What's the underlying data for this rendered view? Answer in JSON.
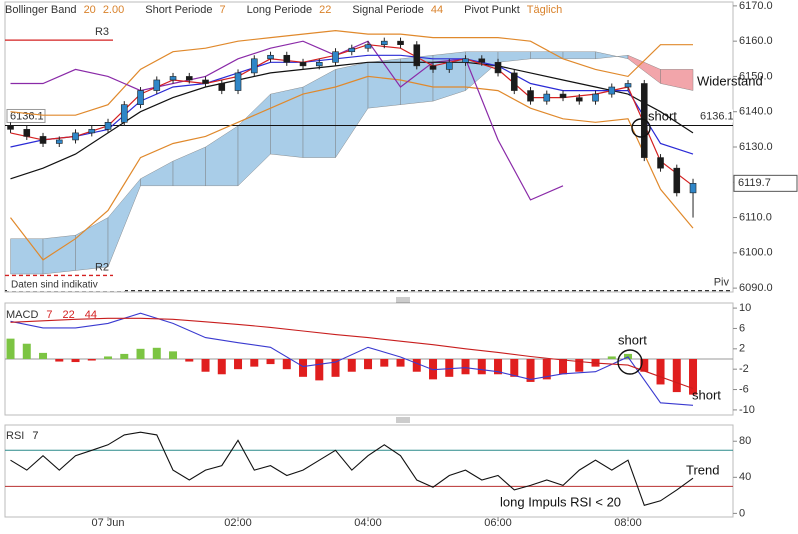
{
  "chart_data": [
    {
      "type": "candlestick",
      "indicators": [
        {
          "name": "Bollinger Band",
          "params": [
            "20",
            "2.00"
          ]
        },
        {
          "name": "Short Periode",
          "params": [
            "7"
          ]
        },
        {
          "name": "Long Periode",
          "params": [
            "22"
          ]
        },
        {
          "name": "Signal Periode",
          "params": [
            "44"
          ]
        },
        {
          "name": "Pivot Punkt",
          "params": [
            "Täglich"
          ]
        }
      ],
      "param_color": "#d9822b",
      "note": "Daten sind indikativ",
      "x": [
        -1.5,
        -1.25,
        -1,
        -0.75,
        -0.5,
        -0.25,
        0,
        0.25,
        0.5,
        0.75,
        1,
        1.25,
        1.5,
        1.75,
        2,
        2.25,
        2.5,
        2.75,
        3,
        3.25,
        3.5,
        3.75,
        4,
        4.25,
        4.5,
        4.75,
        5,
        5.25,
        5.5,
        5.75,
        6,
        6.25,
        6.5,
        6.75,
        7,
        7.25,
        7.5,
        7.75,
        8,
        8.25,
        8.5,
        8.75,
        9
      ],
      "open": [
        6136,
        6135,
        6133,
        6131,
        6132,
        6134,
        6135,
        6137,
        6142,
        6146,
        6149,
        6150,
        6149,
        6148,
        6146,
        6151,
        6155,
        6156,
        6154,
        6153,
        6154,
        6157,
        6158,
        6159,
        6160,
        6159,
        6153,
        6152,
        6154,
        6155,
        6154,
        6151,
        6146,
        6143,
        6145,
        6144,
        6143,
        6145,
        6147,
        6148,
        6127,
        6124,
        6117
      ],
      "high": [
        6137,
        6136,
        6134,
        6133,
        6135,
        6136,
        6138,
        6143,
        6147,
        6150,
        6151,
        6151,
        6150,
        6149,
        6152,
        6156,
        6157,
        6157,
        6155,
        6155,
        6158,
        6159,
        6160,
        6161,
        6161,
        6160,
        6154,
        6155,
        6156,
        6156,
        6155,
        6152,
        6147,
        6146,
        6146,
        6145,
        6146,
        6148,
        6149,
        6149,
        6128,
        6125,
        6121
      ],
      "low": [
        6134,
        6132,
        6130,
        6130,
        6131,
        6133,
        6134,
        6136,
        6141,
        6145,
        6148,
        6148,
        6147,
        6145,
        6145,
        6150,
        6154,
        6153,
        6152,
        6152,
        6153,
        6156,
        6157,
        6158,
        6158,
        6152,
        6151,
        6151,
        6153,
        6153,
        6150,
        6145,
        6142,
        6142,
        6143,
        6142,
        6142,
        6144,
        6146,
        6126,
        6123,
        6116,
        6110
      ],
      "close": [
        6135,
        6133,
        6131,
        6132,
        6134,
        6135,
        6137,
        6142,
        6146,
        6149,
        6150,
        6149,
        6148,
        6146,
        6151,
        6155,
        6156,
        6154,
        6153,
        6154,
        6157,
        6158,
        6159,
        6160,
        6159,
        6153,
        6152,
        6154,
        6155,
        6154,
        6151,
        6146,
        6143,
        6145,
        6144,
        6143,
        6145,
        6147,
        6148,
        6127,
        6124,
        6117,
        6119.7
      ],
      "up_color": "#2f86c8",
      "down_color": "#1a1a1a",
      "line_x": [
        -1.5,
        -1,
        -0.5,
        0,
        0.5,
        1,
        1.5,
        2,
        2.5,
        3,
        3.5,
        4,
        4.5,
        5,
        5.5,
        6,
        6.5,
        7,
        7.5,
        8,
        8.5,
        9
      ],
      "cloud": {
        "color_up": "#a9cde8",
        "color_down": "#f2a5aa",
        "span_a": [
          6104,
          6104,
          6105,
          6110,
          6121,
          6126,
          6130,
          6136,
          6145,
          6147,
          6152,
          6154,
          6155,
          6156,
          6157,
          6157,
          6157,
          6157,
          6157,
          6155,
          6148,
          6146
        ],
        "span_b": [
          6094,
          6094,
          6095,
          6096,
          6119,
          6119,
          6119,
          6119,
          6128,
          6127,
          6127,
          6141,
          6142,
          6143,
          6146,
          6154,
          6155,
          6155,
          6155,
          6156,
          6152,
          6152
        ]
      },
      "lines": [
        {
          "color": "#e0892c",
          "values": [
            6140,
            6139,
            6139,
            6142,
            6152,
            6157,
            6158,
            6160,
            6161,
            6162,
            6163,
            6162,
            6162,
            6161,
            6161,
            6161,
            6160,
            6155,
            6152,
            6150,
            6159,
            6159
          ]
        },
        {
          "color": "#e0892c",
          "values": [
            6110,
            6098,
            6104,
            6112,
            6127,
            6131,
            6133,
            6137,
            6141,
            6145,
            6147,
            6150,
            6149,
            6147,
            6147,
            6146,
            6141,
            6138,
            6137,
            6138,
            6118,
            6107
          ]
        },
        {
          "color": "#8a2aa8",
          "values": [
            6148,
            6148,
            6152,
            6150,
            6146,
            6148,
            6150,
            6155,
            6158,
            6160,
            6156,
            6160,
            6147,
            6154,
            6155,
            6132,
            6115,
            6119,
            null,
            null,
            null,
            null
          ]
        },
        {
          "color": "#111111",
          "values": [
            6121,
            6124,
            6128,
            6134,
            6140,
            6144,
            6147,
            6149,
            6151,
            6152,
            6153,
            6154,
            6154,
            6154,
            6154,
            6153,
            6151,
            6149,
            6147,
            6145,
            6140,
            6134
          ]
        },
        {
          "color": "#2b2bd6",
          "values": [
            6130,
            6132,
            6133,
            6135,
            6143,
            6147,
            6148,
            6151,
            6154,
            6154,
            6155,
            6156,
            6156,
            6155,
            6155,
            6153,
            6148,
            6146,
            6146,
            6146,
            6131,
            6128
          ]
        },
        {
          "color": "#d42020",
          "values": [
            6134,
            6132,
            6133,
            6136,
            6145,
            6149,
            6148,
            6150,
            6155,
            6154,
            6156,
            6159,
            6158,
            6153,
            6155,
            6152,
            6144,
            6144,
            6145,
            6147,
            6126,
            6119
          ]
        }
      ],
      "levels": [
        {
          "label": "R3",
          "value": 6160.3,
          "color": "#d42020",
          "dashed": false
        },
        {
          "label": "R2",
          "value": 6093.6,
          "color": "#d42020",
          "dashed": true
        },
        {
          "label": "Piv",
          "value": 6089.3,
          "color": "#333333",
          "dashed": true
        }
      ],
      "marker_line": {
        "value": 6136.1,
        "color": "#111111"
      },
      "annotations": [
        "short",
        "Widerstand"
      ],
      "ylim": [
        6088.9,
        6171.1
      ],
      "yticks": [
        {
          "value": 6170,
          "label": "6170.0"
        },
        {
          "value": 6160,
          "label": "6160.0"
        },
        {
          "value": 6150,
          "label": "6150.0"
        },
        {
          "value": 6140,
          "label": "6140.0"
        },
        {
          "value": 6130,
          "label": "6130.0"
        },
        {
          "value": 6120,
          "label": "6120.0"
        },
        {
          "value": 6110,
          "label": "6110.0"
        },
        {
          "value": 6100,
          "label": "6100.0"
        },
        {
          "value": 6090,
          "label": "6090.0"
        }
      ]
    },
    {
      "type": "macd",
      "title": "MACD",
      "params": [
        "7",
        "22",
        "44"
      ],
      "param_color": "#d42020",
      "histogram": {
        "pos_color": "#7cc443",
        "neg_color": "#e01e1e",
        "values": [
          4.0,
          3.0,
          1.2,
          -0.5,
          -0.6,
          -0.3,
          0.5,
          1.0,
          2.0,
          2.2,
          1.5,
          -0.5,
          -2.5,
          -3.0,
          -2.0,
          -1.5,
          -1.0,
          -2.0,
          -3.5,
          -4.2,
          -3.5,
          -2.5,
          -2.0,
          -1.5,
          -1.5,
          -2.5,
          -4.0,
          -3.5,
          -3.0,
          -3.0,
          -3.0,
          -3.5,
          -4.5,
          -4.0,
          -3.0,
          -2.5,
          -1.5,
          0.5,
          1.0,
          -2.5,
          -5.0,
          -6.5,
          -7.0
        ]
      },
      "lines": [
        {
          "color": "#3a3ad0",
          "values": [
            7.4,
            6.1,
            6.1,
            7,
            9,
            7,
            4.2,
            3.2,
            2.3,
            -1.5,
            -0.6,
            2.3,
            0.4,
            -2.1,
            -1.7,
            -2.5,
            -4,
            -2.9,
            -2.5,
            0.4,
            -8.6,
            -9.1
          ]
        },
        {
          "color": "#c81e1e",
          "values": [
            7.2,
            7.5,
            7.8,
            8,
            8,
            7.8,
            7.3,
            6.8,
            6.2,
            5.5,
            4.8,
            4.2,
            3.5,
            2.8,
            2,
            1.3,
            0.5,
            -0.2,
            -0.8,
            -1.2,
            -3.5,
            -5.8
          ]
        }
      ],
      "annotations": [
        "short",
        "short"
      ],
      "ylim": [
        -11,
        11
      ],
      "yticks": [
        10,
        6,
        2,
        -2,
        -6,
        -10
      ]
    },
    {
      "type": "line",
      "title": "RSI",
      "params": [
        "7"
      ],
      "param_color": "#222222",
      "color": "#111111",
      "values": [
        59,
        48,
        64,
        48,
        64,
        70,
        76,
        87,
        90,
        87,
        48,
        37,
        48,
        53,
        81,
        48,
        53,
        42,
        48,
        59,
        70,
        48,
        64,
        76,
        64,
        37,
        29,
        42,
        48,
        37,
        42,
        26,
        31,
        37,
        31,
        48,
        59,
        48,
        59,
        9,
        14,
        26,
        39
      ],
      "levels": [
        {
          "value": 70,
          "color": "#2a8a8a"
        },
        {
          "value": 30,
          "color": "#b83030"
        }
      ],
      "annotations": [
        "Trend",
        "long Impuls RSI < 20"
      ],
      "ylim": [
        -4,
        98
      ],
      "yticks": [
        80,
        40,
        0
      ],
      "xlim": [
        -1.585,
        9.615
      ],
      "xticks": [
        {
          "value": 0,
          "label": "07 Jun"
        },
        {
          "value": 2,
          "label": "02:00"
        },
        {
          "value": 4,
          "label": "04:00"
        },
        {
          "value": 6,
          "label": "06:00"
        },
        {
          "value": 8,
          "label": "08:00"
        }
      ]
    }
  ]
}
